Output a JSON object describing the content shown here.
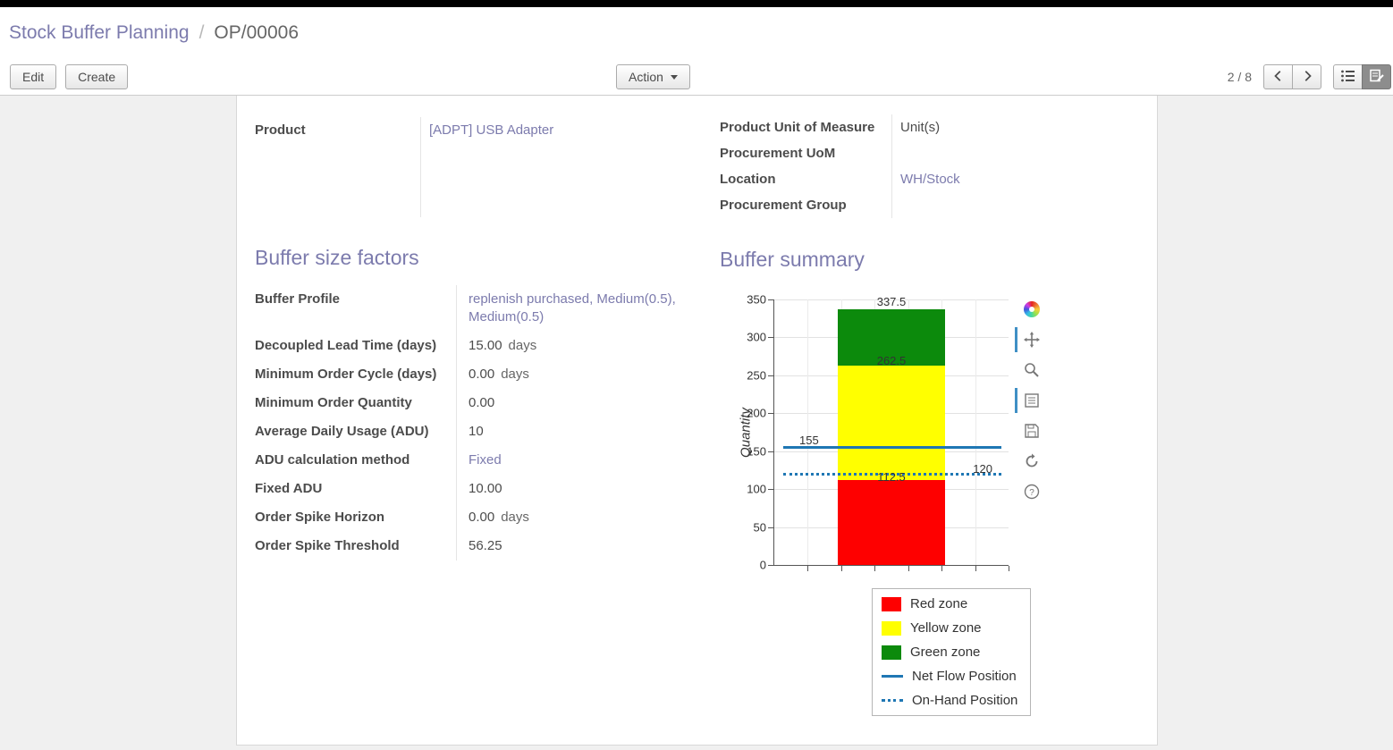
{
  "breadcrumb": {
    "parent": "Stock Buffer Planning",
    "separator": "/",
    "current": "OP/00006"
  },
  "toolbar": {
    "edit": "Edit",
    "create": "Create",
    "action": "Action",
    "pager": "2 / 8"
  },
  "record": {
    "left": [
      {
        "label": "Product",
        "value": "[ADPT] USB Adapter"
      }
    ],
    "right": [
      {
        "label": "Product Unit of Measure",
        "value": "Unit(s)"
      },
      {
        "label": "Procurement UoM",
        "value": ""
      },
      {
        "label": "Location",
        "value": "WH/Stock"
      },
      {
        "label": "Procurement Group",
        "value": ""
      }
    ]
  },
  "buffer_factors": {
    "title": "Buffer size factors",
    "rows": [
      {
        "label": "Buffer Profile",
        "value": "replenish purchased, Medium(0.5), Medium(0.5)",
        "suffix": ""
      },
      {
        "label": "Decoupled Lead Time (days)",
        "value": "15.00",
        "suffix": "days"
      },
      {
        "label": "Minimum Order Cycle (days)",
        "value": "0.00",
        "suffix": "days"
      },
      {
        "label": "Minimum Order Quantity",
        "value": "0.00",
        "suffix": ""
      },
      {
        "label": "Average Daily Usage (ADU)",
        "value": "10",
        "suffix": ""
      },
      {
        "label": "ADU calculation method",
        "value": "Fixed",
        "suffix": ""
      },
      {
        "label": "Fixed ADU",
        "value": "10.00",
        "suffix": ""
      },
      {
        "label": "Order Spike Horizon",
        "value": "0.00",
        "suffix": "days"
      },
      {
        "label": "Order Spike Threshold",
        "value": "56.25",
        "suffix": ""
      }
    ]
  },
  "buffer_summary": {
    "title": "Buffer summary"
  },
  "chart_data": {
    "type": "bar",
    "title": "",
    "xlabel": "",
    "ylabel": "Quantity",
    "ylim": [
      0,
      350
    ],
    "yticks": [
      0,
      50,
      100,
      150,
      200,
      250,
      300,
      350
    ],
    "grid": true,
    "zones": [
      {
        "name": "Red zone",
        "from": 0,
        "to": 112.5,
        "color": "#fe0000"
      },
      {
        "name": "Yellow zone",
        "from": 112.5,
        "to": 262.5,
        "color": "#ffff00"
      },
      {
        "name": "Green zone",
        "from": 262.5,
        "to": 337.5,
        "color": "#0c8a0c"
      }
    ],
    "lines": [
      {
        "name": "Net Flow Position",
        "value": 155,
        "style": "solid",
        "color": "#1f77b4"
      },
      {
        "name": "On-Hand Position",
        "value": 120,
        "style": "dotted",
        "color": "#1f77b4"
      }
    ],
    "annotations": [
      {
        "text": "337.5",
        "value": 337.5,
        "anchor": "bar",
        "dy": -16
      },
      {
        "text": "262.5",
        "value": 262.5,
        "anchor": "bar",
        "dy": -13
      },
      {
        "text": "155",
        "value": 155,
        "anchor": "left",
        "dy": -15
      },
      {
        "text": "112.5",
        "value": 112.5,
        "anchor": "bar",
        "dy": -11
      },
      {
        "text": "120",
        "value": 120,
        "anchor": "right",
        "dy": -13
      }
    ],
    "legend_position": "bottom-right"
  }
}
